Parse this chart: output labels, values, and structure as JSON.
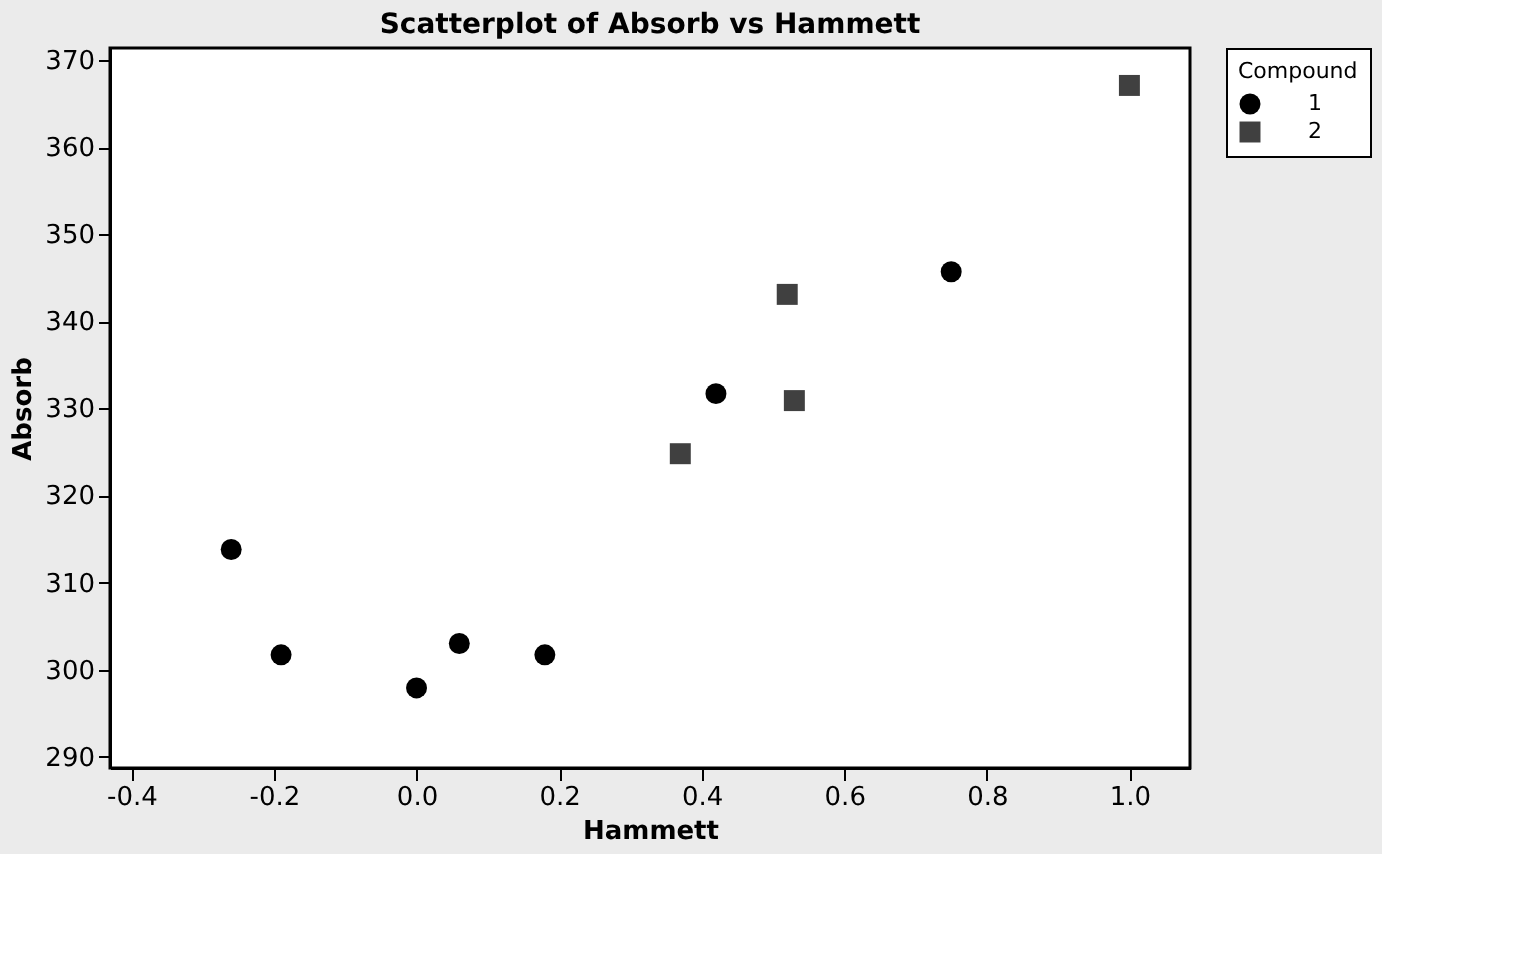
{
  "chart_data": {
    "type": "scatter",
    "title": "Scatterplot of Absorb vs Hammett",
    "xlabel": "Hammett",
    "ylabel": "Absorb",
    "legend_title": "Compound",
    "legend": "right",
    "series": [
      {
        "name": "1",
        "color": "#000000",
        "marker": "circle",
        "x": [
          -0.26,
          -0.19,
          0.0,
          0.06,
          0.18,
          0.42,
          0.75
        ],
        "values": [
          313.8,
          301.7,
          297.9,
          303.0,
          301.7,
          331.7,
          345.7
        ]
      },
      {
        "name": "2",
        "color": "#404040",
        "marker": "square",
        "x": [
          0.37,
          0.52,
          0.53,
          1.0
        ],
        "values": [
          324.8,
          343.1,
          330.9,
          367.1
        ]
      }
    ],
    "xlim": [
      -0.43,
      1.085
    ],
    "ylim": [
      288.7,
      371.4
    ],
    "xticks": [
      {
        "value": -0.4,
        "label": "-0.4"
      },
      {
        "value": -0.2,
        "label": "-0.2"
      },
      {
        "value": 0.0,
        "label": "0.0"
      },
      {
        "value": 0.2,
        "label": "0.2"
      },
      {
        "value": 0.4,
        "label": "0.4"
      },
      {
        "value": 0.6,
        "label": "0.6"
      },
      {
        "value": 0.8,
        "label": "0.8"
      },
      {
        "value": 1.0,
        "label": "1.0"
      }
    ],
    "yticks": [
      290,
      300,
      310,
      320,
      330,
      340,
      350,
      360,
      370
    ],
    "grid": false
  }
}
